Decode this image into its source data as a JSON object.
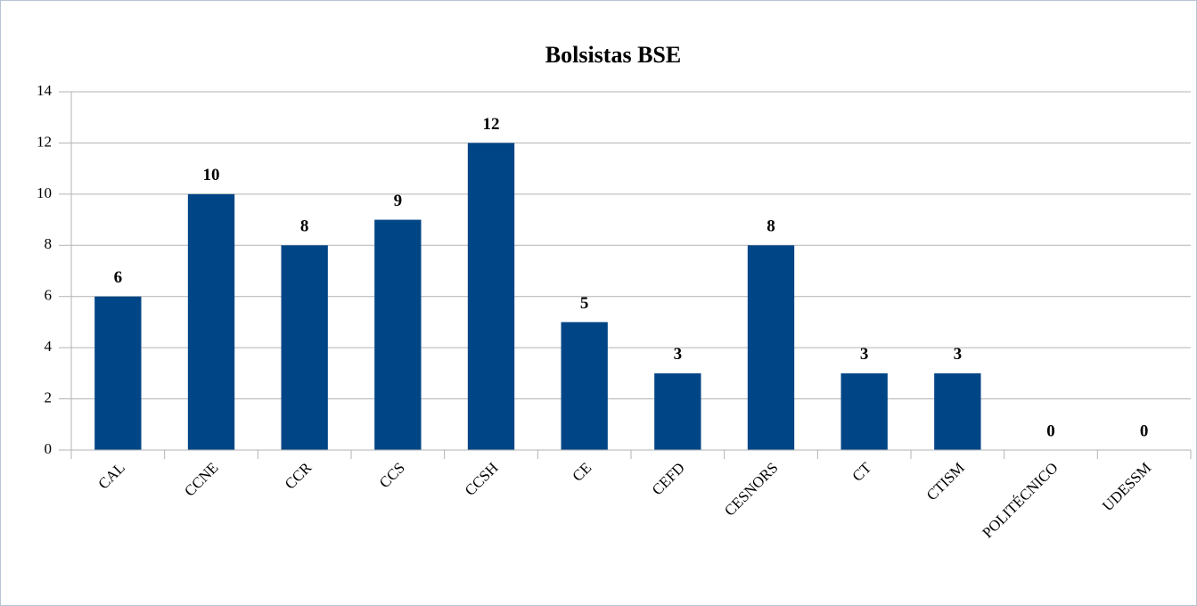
{
  "chart_data": {
    "type": "bar",
    "title": "Bolsistas BSE",
    "categories": [
      "CAL",
      "CCNE",
      "CCR",
      "CCS",
      "CCSH",
      "CE",
      "CEFD",
      "CESNORS",
      "CT",
      "CTISM",
      "POLITÉCNICO",
      "UDESSM"
    ],
    "values": [
      6,
      10,
      8,
      9,
      12,
      5,
      3,
      8,
      3,
      3,
      0,
      0
    ],
    "color": "#004586",
    "ylim": [
      0,
      14
    ],
    "yticks": [
      0,
      2,
      4,
      6,
      8,
      10,
      12,
      14
    ],
    "grid": true
  }
}
